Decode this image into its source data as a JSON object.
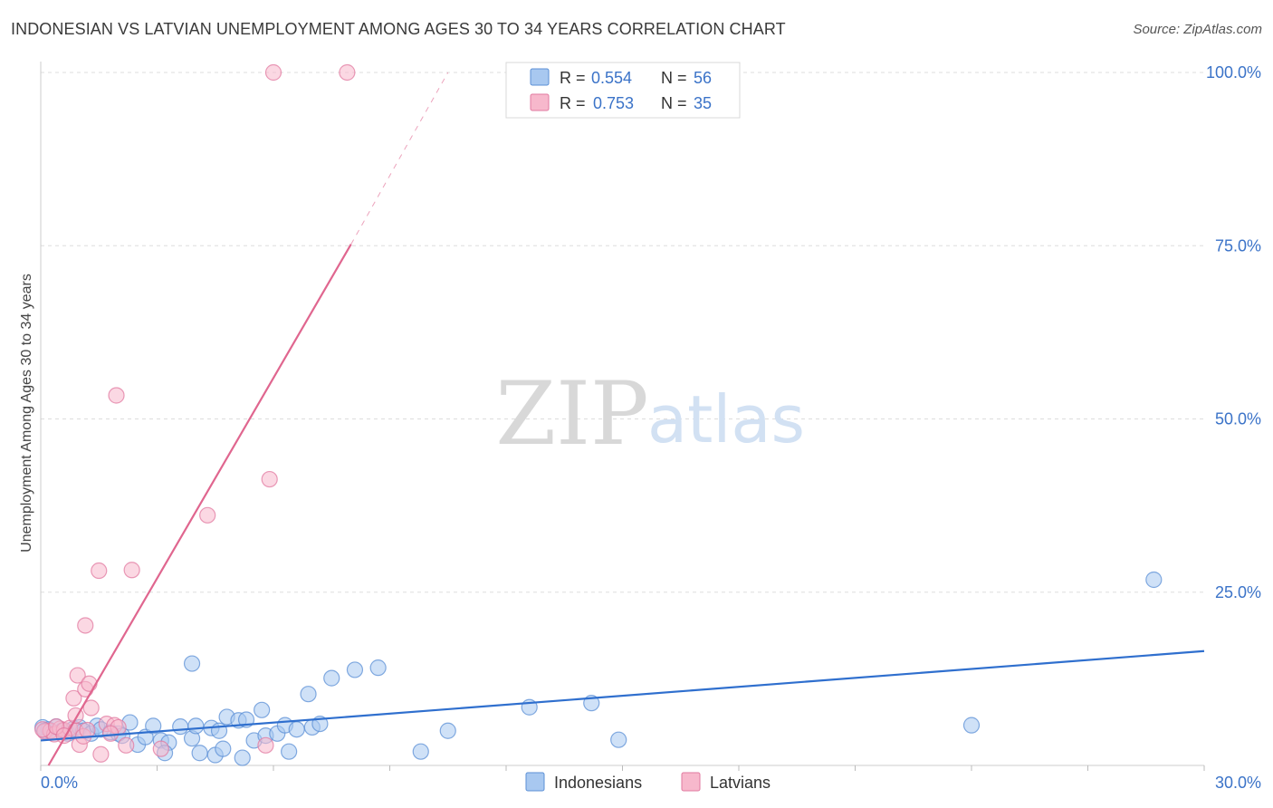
{
  "header": {
    "title": "INDONESIAN VS LATVIAN UNEMPLOYMENT AMONG AGES 30 TO 34 YEARS CORRELATION CHART",
    "source": "Source: ZipAtlas.com"
  },
  "watermark": {
    "zip": "ZIP",
    "atlas": "atlas"
  },
  "colors": {
    "indonesians_fill": "#a8c8f0",
    "indonesians_stroke": "#5b8fd6",
    "indonesians_line": "#2f6fce",
    "latvians_fill": "#f7b8cc",
    "latvians_stroke": "#e27aa0",
    "latvians_line": "#e0668f",
    "value_text": "#3b73c8",
    "grid": "#dddddd"
  },
  "chart_data": {
    "type": "scatter",
    "title": "INDONESIAN VS LATVIAN UNEMPLOYMENT AMONG AGES 30 TO 34 YEARS CORRELATION CHART",
    "xlabel": "",
    "ylabel": "Unemployment Among Ages 30 to 34 years",
    "xlim": [
      0,
      30
    ],
    "ylim": [
      0,
      100
    ],
    "x_tick_labels": [
      "0.0%",
      "30.0%"
    ],
    "y_tick_values": [
      25,
      50,
      75,
      100
    ],
    "y_tick_labels": [
      "25.0%",
      "50.0%",
      "75.0%",
      "100.0%"
    ],
    "grid": true,
    "legend_position": "top-center",
    "stats": [
      {
        "r_label": "R =",
        "r_value": "0.554",
        "n_label": "N =",
        "n_value": "56"
      },
      {
        "r_label": "R =",
        "r_value": "0.753",
        "n_label": "N =",
        "n_value": "35"
      }
    ],
    "series": [
      {
        "name": "Indonesians",
        "points": [
          [
            0.05,
            5.5
          ],
          [
            0.2,
            5.2
          ],
          [
            0.3,
            4.8
          ],
          [
            0.4,
            5.6
          ],
          [
            0.55,
            5.0
          ],
          [
            0.7,
            4.6
          ],
          [
            0.85,
            5.3
          ],
          [
            1.0,
            5.5
          ],
          [
            1.1,
            5.0
          ],
          [
            1.3,
            4.6
          ],
          [
            1.45,
            5.7
          ],
          [
            1.55,
            5.2
          ],
          [
            1.8,
            4.8
          ],
          [
            2.0,
            4.6
          ],
          [
            2.1,
            4.3
          ],
          [
            2.3,
            6.2
          ],
          [
            2.5,
            3.0
          ],
          [
            2.7,
            4.1
          ],
          [
            2.9,
            5.7
          ],
          [
            3.1,
            3.6
          ],
          [
            3.3,
            3.3
          ],
          [
            3.2,
            1.8
          ],
          [
            3.6,
            5.6
          ],
          [
            3.9,
            3.9
          ],
          [
            4.0,
            5.7
          ],
          [
            4.1,
            1.8
          ],
          [
            4.4,
            5.4
          ],
          [
            4.5,
            1.5
          ],
          [
            4.6,
            5.0
          ],
          [
            4.7,
            2.4
          ],
          [
            4.8,
            7.0
          ],
          [
            5.1,
            6.5
          ],
          [
            5.2,
            1.1
          ],
          [
            5.3,
            6.6
          ],
          [
            5.5,
            3.6
          ],
          [
            5.7,
            8.0
          ],
          [
            5.8,
            4.3
          ],
          [
            6.1,
            4.6
          ],
          [
            6.3,
            5.8
          ],
          [
            6.4,
            2.0
          ],
          [
            6.6,
            5.2
          ],
          [
            6.9,
            10.3
          ],
          [
            7.0,
            5.5
          ],
          [
            7.2,
            6.0
          ],
          [
            7.5,
            12.6
          ],
          [
            8.1,
            13.8
          ],
          [
            8.7,
            14.1
          ],
          [
            9.8,
            2.0
          ],
          [
            10.5,
            5.0
          ],
          [
            12.6,
            8.4
          ],
          [
            14.2,
            9.0
          ],
          [
            14.9,
            3.7
          ],
          [
            3.9,
            14.7
          ],
          [
            24.0,
            5.8
          ],
          [
            28.7,
            26.8
          ],
          [
            0.1,
            5.0
          ]
        ]
      },
      {
        "name": "Latvians",
        "points": [
          [
            0.1,
            4.9
          ],
          [
            0.25,
            5.0
          ],
          [
            0.35,
            4.5
          ],
          [
            0.5,
            5.3
          ],
          [
            0.6,
            5.1
          ],
          [
            0.75,
            5.4
          ],
          [
            0.9,
            5.0
          ],
          [
            1.0,
            3.0
          ],
          [
            1.1,
            4.2
          ],
          [
            1.2,
            5.1
          ],
          [
            0.9,
            7.2
          ],
          [
            0.85,
            9.7
          ],
          [
            0.95,
            13.0
          ],
          [
            1.15,
            11.0
          ],
          [
            1.25,
            11.8
          ],
          [
            1.3,
            8.3
          ],
          [
            1.55,
            1.6
          ],
          [
            1.7,
            6.0
          ],
          [
            1.9,
            5.8
          ],
          [
            2.2,
            2.9
          ],
          [
            1.95,
            53.4
          ],
          [
            1.5,
            28.1
          ],
          [
            2.35,
            28.2
          ],
          [
            3.1,
            2.4
          ],
          [
            4.3,
            36.1
          ],
          [
            5.8,
            2.9
          ],
          [
            5.9,
            41.3
          ],
          [
            6.0,
            100.0
          ],
          [
            7.9,
            100.0
          ],
          [
            1.15,
            20.2
          ],
          [
            2.0,
            5.5
          ],
          [
            0.05,
            5.2
          ],
          [
            0.4,
            5.6
          ],
          [
            0.6,
            4.3
          ],
          [
            1.8,
            4.6
          ]
        ]
      }
    ],
    "trend_lines": [
      {
        "series": "Indonesians",
        "x": [
          0,
          30
        ],
        "y": [
          3.6,
          16.5
        ]
      },
      {
        "series": "Latvians",
        "x": [
          0.2,
          8.0
        ],
        "y": [
          0,
          75.2
        ],
        "dashed_extension": {
          "x": [
            8.0,
            10.5
          ],
          "y": [
            75.2,
            100.0
          ]
        }
      }
    ]
  }
}
